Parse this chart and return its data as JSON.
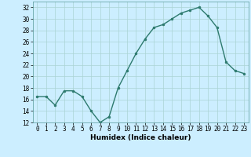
{
  "x": [
    0,
    1,
    2,
    3,
    4,
    5,
    6,
    7,
    8,
    9,
    10,
    11,
    12,
    13,
    14,
    15,
    16,
    17,
    18,
    19,
    20,
    21,
    22,
    23
  ],
  "y": [
    16.5,
    16.5,
    15.0,
    17.5,
    17.5,
    16.5,
    14.0,
    12.0,
    13.0,
    18.0,
    21.0,
    24.0,
    26.5,
    28.5,
    29.0,
    30.0,
    31.0,
    31.5,
    32.0,
    30.5,
    28.5,
    22.5,
    21.0,
    20.5
  ],
  "line_color": "#2d7a6e",
  "marker": "o",
  "marker_size": 2.0,
  "bg_color": "#cceeff",
  "grid_color": "#aad4d4",
  "xlabel": "Humidex (Indice chaleur)",
  "ylim": [
    12,
    33
  ],
  "xlim": [
    -0.5,
    23.5
  ],
  "yticks": [
    12,
    14,
    16,
    18,
    20,
    22,
    24,
    26,
    28,
    30,
    32
  ],
  "xticks": [
    0,
    1,
    2,
    3,
    4,
    5,
    6,
    7,
    8,
    9,
    10,
    11,
    12,
    13,
    14,
    15,
    16,
    17,
    18,
    19,
    20,
    21,
    22,
    23
  ],
  "tick_fontsize": 5.5,
  "xlabel_fontsize": 6.5,
  "linewidth": 1.0
}
